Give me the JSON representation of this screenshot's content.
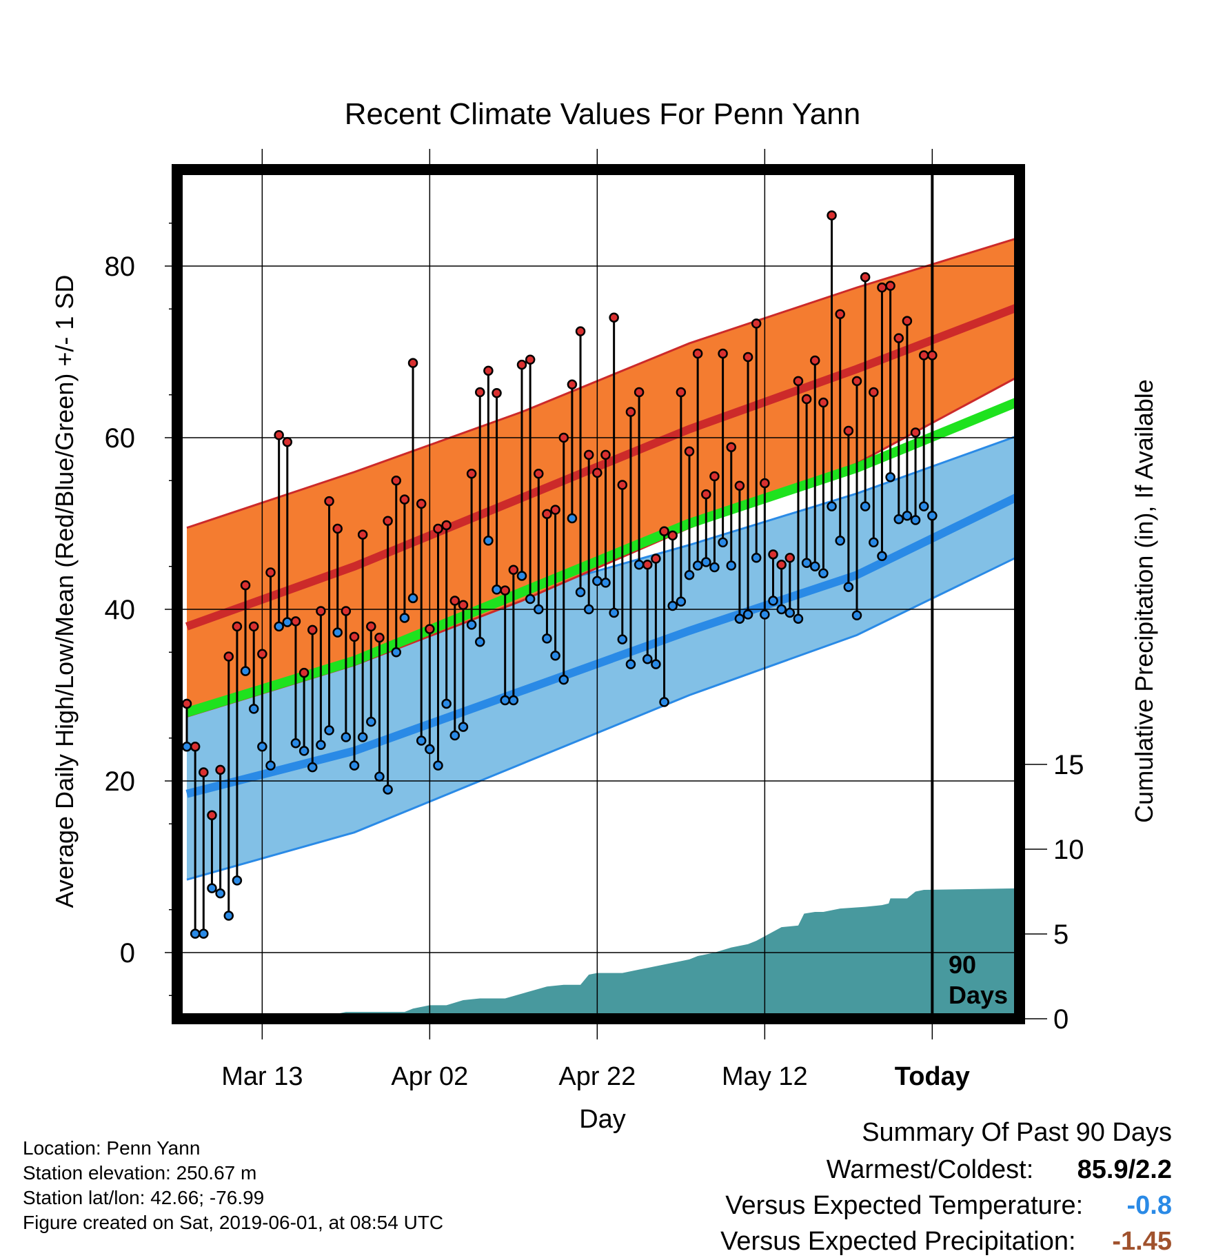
{
  "chart_data": {
    "type": "line",
    "title": "Recent Climate Values For Penn Yann",
    "xlabel": "Day",
    "ylabel": "Average Daily High/Low/Mean (Red/Blue/Green) +/- 1 SD",
    "y2label": "Cumulative Precipitation (in), If Available",
    "x_tick_labels": [
      "Mar 13",
      "Apr 02",
      "Apr 22",
      "May 12",
      "Today"
    ],
    "y_ticks": [
      0,
      20,
      40,
      60,
      80
    ],
    "y2_ticks": [
      0,
      5,
      10,
      15
    ],
    "ylim": [
      -8,
      91
    ],
    "y2lim": [
      0,
      15
    ],
    "marker_label": "90 Days",
    "colors": {
      "high_band": "#f47c30",
      "high_line": "#cc2a2a",
      "low_band": "#82c0e6",
      "low_line": "#2a8ae6",
      "mean_line": "#1ee21e",
      "precip": "#48999e",
      "high_dot": "#d93030",
      "low_dot": "#2a8ae6"
    },
    "normals": {
      "day_index": [
        0,
        20,
        40,
        60,
        80,
        100
      ],
      "high_mean": [
        38.0,
        45.0,
        53.0,
        61.0,
        68.0,
        75.5
      ],
      "high_upper": [
        49.5,
        56.0,
        63.0,
        71.0,
        77.5,
        83.5
      ],
      "high_lower": [
        27.5,
        33.5,
        41.0,
        49.5,
        57.0,
        67.5
      ],
      "low_mean": [
        18.5,
        23.5,
        30.5,
        37.5,
        44.0,
        53.5
      ],
      "low_upper": [
        29.5,
        35.0,
        42.0,
        47.5,
        53.5,
        60.5
      ],
      "low_lower": [
        8.5,
        14.0,
        22.0,
        30.0,
        37.0,
        46.5
      ],
      "avg_mean": [
        28.0,
        34.0,
        42.0,
        50.0,
        56.5,
        64.5
      ]
    },
    "daily_high": [
      29,
      24,
      21,
      16,
      21.3,
      34.5,
      38,
      42.8,
      38,
      34.8,
      44.3,
      60.3,
      59.5,
      38.6,
      32.6,
      37.6,
      39.8,
      52.6,
      49.4,
      39.8,
      36.8,
      48.7,
      38,
      36.7,
      50.3,
      55,
      52.8,
      68.7,
      52.3,
      37.7,
      49.4,
      49.8,
      41,
      40.5,
      55.8,
      65.3,
      67.8,
      65.2,
      42.2,
      44.6,
      68.5,
      69.1,
      55.8,
      51.1,
      51.6,
      60,
      66.2,
      72.4,
      58,
      55.9,
      58,
      74,
      54.5,
      63,
      65.3,
      45.2,
      45.9,
      49.1,
      48.6,
      65.3,
      58.4,
      69.8,
      53.4,
      55.5,
      69.8,
      58.9,
      54.4,
      69.4,
      73.3,
      54.7,
      46.4,
      45.2,
      46,
      66.6,
      64.5,
      69,
      64.1,
      85.9,
      74.4,
      60.8,
      66.6,
      78.7,
      65.3,
      77.5,
      77.7,
      71.6,
      73.6,
      60.6,
      69.6,
      69.6
    ],
    "daily_low": [
      24,
      2.2,
      2.2,
      7.5,
      6.9,
      4.3,
      8.4,
      32.8,
      28.4,
      24,
      21.8,
      38,
      38.5,
      24.4,
      23.5,
      21.6,
      24.2,
      25.9,
      37.3,
      25.1,
      21.8,
      25.1,
      26.9,
      20.5,
      19,
      35,
      39,
      41.3,
      24.7,
      23.7,
      21.8,
      29,
      25.3,
      26.3,
      38.2,
      36.2,
      48,
      42.3,
      29.4,
      29.4,
      43.9,
      41.2,
      40,
      36.6,
      34.6,
      31.8,
      50.6,
      42,
      40,
      43.3,
      43.1,
      39.6,
      36.5,
      33.6,
      45.2,
      34.2,
      33.6,
      29.2,
      40.4,
      40.9,
      44,
      45.1,
      45.5,
      44.9,
      47.8,
      45.1,
      38.9,
      39.4,
      46,
      39.4,
      41,
      40,
      39.6,
      38.9,
      45.4,
      45,
      44.2,
      52,
      48,
      42.6,
      39.3,
      52,
      47.8,
      46.2,
      55.4,
      50.5,
      50.9,
      50.4,
      52,
      50.9
    ],
    "cumulative_precip": {
      "day_index": [
        0,
        6,
        7,
        15,
        17,
        19,
        20,
        26,
        27,
        29,
        31,
        33,
        35,
        38,
        43,
        45,
        47,
        48,
        49,
        52,
        54,
        55,
        56,
        59,
        60,
        61,
        63,
        65,
        67,
        68,
        71,
        73,
        73.7,
        75,
        76,
        78,
        81,
        83,
        83.8,
        84,
        86,
        87,
        88,
        100
      ],
      "value": [
        0,
        0,
        0.1,
        0.2,
        0.2,
        0.4,
        0.4,
        0.4,
        0.6,
        0.8,
        0.8,
        1.1,
        1.2,
        1.2,
        1.9,
        2.0,
        2.0,
        2.6,
        2.7,
        2.7,
        2.9,
        3.0,
        3.1,
        3.4,
        3.5,
        3.7,
        3.9,
        4.2,
        4.4,
        4.6,
        5.4,
        5.5,
        6.2,
        6.3,
        6.3,
        6.5,
        6.6,
        6.7,
        6.8,
        7.1,
        7.1,
        7.5,
        7.6,
        7.7
      ]
    }
  },
  "info": {
    "location": "Location: Penn Yann",
    "elevation": "Station elevation: 250.67 m",
    "latlon": "Station lat/lon: 42.66; -76.99",
    "created": "Figure created on Sat, 2019-06-01, at 08:54 UTC"
  },
  "summary": {
    "heading": "Summary Of Past 90 Days",
    "warmest_label": "Warmest/Coldest:",
    "warmest_value": "85.9/2.2",
    "temp_label": "Versus Expected Temperature:",
    "temp_value": "-0.8",
    "temp_color": "#2a8ae6",
    "precip_label": "Versus Expected Precipitation:",
    "precip_value": "-1.45",
    "precip_color": "#a0522d"
  }
}
